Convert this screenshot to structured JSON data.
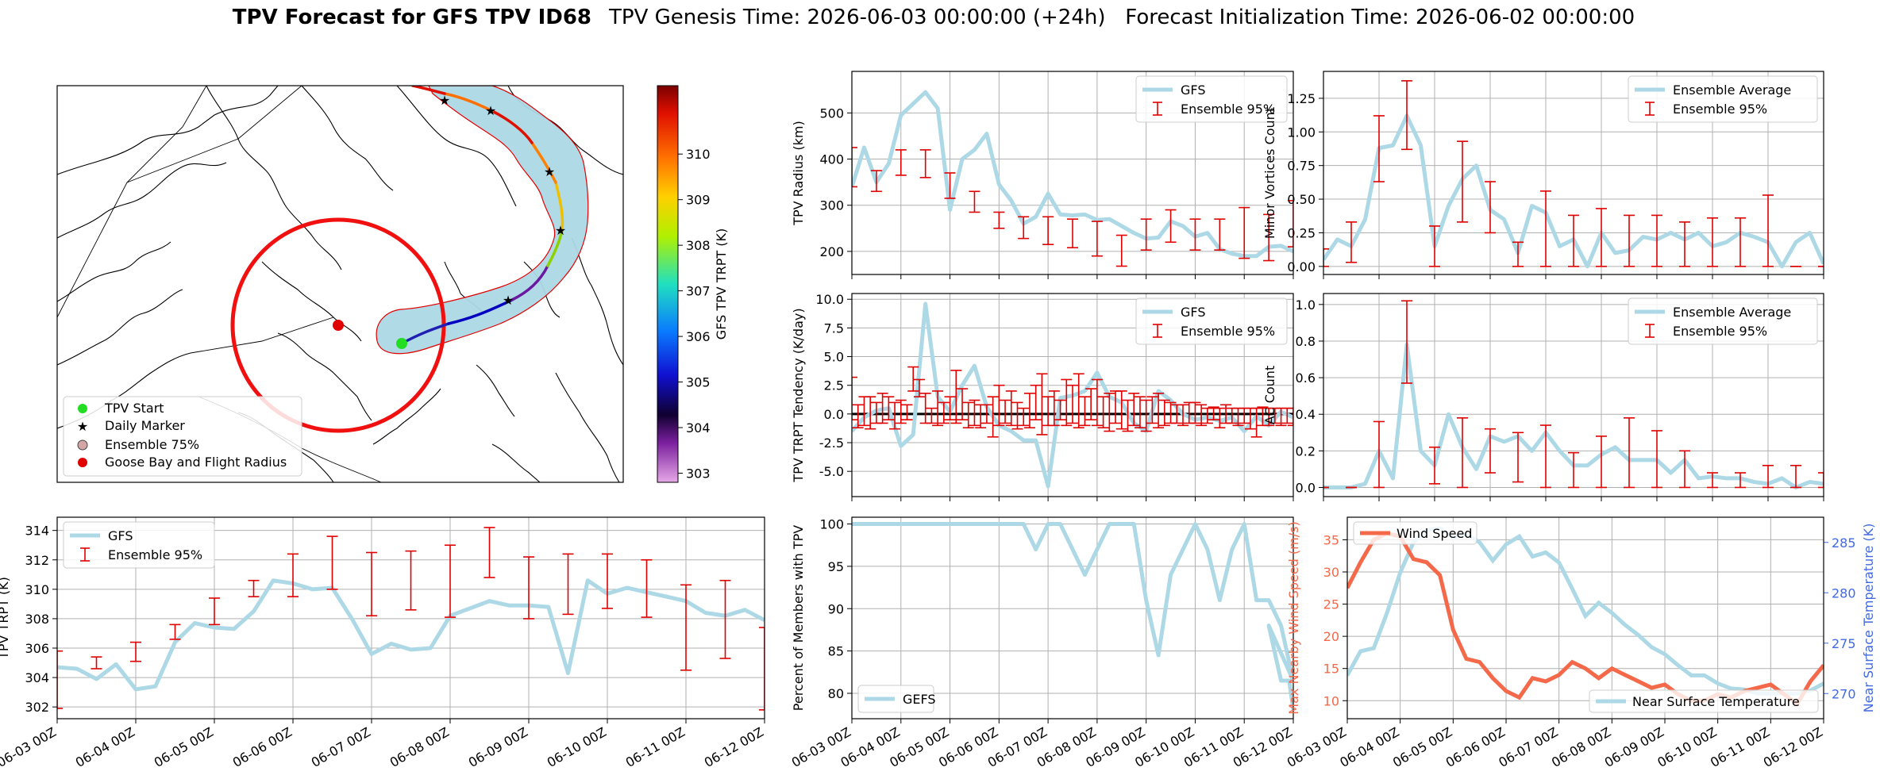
{
  "figure": {
    "title_bold": "TPV Forecast for GFS TPV ID68",
    "title_rest": "TPV Genesis Time: 2026-06-03 00:00:00 (+24h)   Forecast Initialization Time: 2026-06-02 00:00:00"
  },
  "colors": {
    "mean_line": "#add8e6",
    "errorbar": "#e00000",
    "wind": "#f4694a",
    "temp_axis": "#4169e1",
    "cone_fill": "#add8e6",
    "cone_edge": "#e00000",
    "radius_circle": "#f01010"
  },
  "time_ticks": [
    "06-03 00Z",
    "06-04 00Z",
    "06-05 00Z",
    "06-06 00Z",
    "06-07 00Z",
    "06-08 00Z",
    "06-09 00Z",
    "06-10 00Z",
    "06-11 00Z",
    "06-12 00Z"
  ],
  "chart_data": [
    {
      "id": "map",
      "type": "scatter",
      "legend": [
        "TPV Start",
        "Daily Marker",
        "Ensemble 75%",
        "Goose Bay and Flight Radius"
      ],
      "colorbar": {
        "label": "GFS TPV TRPT (K)",
        "ticks": [
          303,
          304,
          305,
          306,
          307,
          308,
          309,
          310
        ],
        "range": [
          302.8,
          311.5
        ]
      }
    },
    {
      "id": "radius",
      "type": "line",
      "ylabel": "TPV Radius (km)",
      "ylim": [
        150,
        590
      ],
      "yticks": [
        200,
        300,
        400,
        500
      ],
      "legend": [
        "GFS",
        "Ensemble 95%"
      ],
      "x_hours": [
        0,
        6,
        12,
        18,
        24,
        30,
        36,
        42,
        48,
        54,
        60,
        66,
        72,
        78,
        84,
        90,
        96,
        102,
        108,
        114,
        120,
        126,
        132,
        138,
        144,
        150,
        156,
        162,
        168,
        174,
        180,
        186,
        192,
        198,
        204,
        210,
        216
      ],
      "values": [
        340,
        425,
        350,
        390,
        495,
        520,
        545,
        510,
        290,
        400,
        420,
        455,
        345,
        310,
        260,
        275,
        325,
        280,
        278,
        280,
        268,
        270,
        255,
        240,
        228,
        230,
        265,
        255,
        232,
        240,
        205,
        195,
        190,
        190,
        210,
        212,
        200
      ],
      "err_x_hours": [
        0,
        12,
        24,
        36,
        48,
        60,
        72,
        84,
        96,
        108,
        120,
        132,
        144,
        156,
        168,
        180,
        192,
        204,
        216
      ],
      "err_low": [
        340,
        330,
        365,
        360,
        315,
        285,
        250,
        228,
        215,
        208,
        190,
        168,
        203,
        220,
        203,
        203,
        185,
        180,
        210
      ],
      "err_high": [
        425,
        375,
        420,
        420,
        370,
        330,
        285,
        275,
        275,
        270,
        265,
        235,
        270,
        290,
        270,
        270,
        295,
        280,
        310
      ]
    },
    {
      "id": "minor",
      "type": "line",
      "ylabel": "Minor Vortices Count",
      "ylim": [
        -0.06,
        1.45
      ],
      "yticks": [
        0.0,
        0.25,
        0.5,
        0.75,
        1.0,
        1.25
      ],
      "legend": [
        "Ensemble Average",
        "Ensemble 95%"
      ],
      "x_hours": [
        0,
        6,
        12,
        18,
        24,
        30,
        36,
        42,
        48,
        54,
        60,
        66,
        72,
        78,
        84,
        90,
        96,
        102,
        108,
        114,
        120,
        126,
        132,
        138,
        144,
        150,
        156,
        162,
        168,
        174,
        180,
        186,
        192,
        198,
        204,
        210,
        216
      ],
      "values": [
        0.05,
        0.2,
        0.15,
        0.35,
        0.88,
        0.9,
        1.12,
        0.9,
        0.15,
        0.45,
        0.65,
        0.75,
        0.42,
        0.35,
        0.1,
        0.45,
        0.4,
        0.15,
        0.2,
        0.0,
        0.25,
        0.1,
        0.12,
        0.22,
        0.2,
        0.25,
        0.2,
        0.25,
        0.15,
        0.18,
        0.25,
        0.22,
        0.18,
        0.0,
        0.18,
        0.25,
        0.02
      ],
      "err_x_hours": [
        0,
        12,
        24,
        36,
        48,
        60,
        72,
        84,
        96,
        108,
        120,
        132,
        144,
        156,
        168,
        180,
        192,
        204,
        216
      ],
      "err_low": [
        0.0,
        0.03,
        0.63,
        0.87,
        0.0,
        0.33,
        0.25,
        0.0,
        0.0,
        0.0,
        0.0,
        0.0,
        0.0,
        0.0,
        0.0,
        0.0,
        0.0,
        0.0,
        0.0
      ],
      "err_high": [
        0.13,
        0.33,
        1.12,
        1.38,
        0.3,
        0.93,
        0.63,
        0.18,
        0.56,
        0.38,
        0.43,
        0.38,
        0.38,
        0.33,
        0.36,
        0.36,
        0.53,
        0.0,
        0.0
      ]
    },
    {
      "id": "tendency",
      "type": "line",
      "ylabel": "TPV TRPT Tendency (K/day)",
      "ylim": [
        -7.2,
        10.5
      ],
      "yticks": [
        -5.0,
        -2.5,
        0.0,
        2.5,
        5.0,
        7.5,
        10.0
      ],
      "legend": [
        "GFS",
        "Ensemble 95%"
      ],
      "x_hours": [
        0,
        6,
        12,
        18,
        24,
        30,
        36,
        42,
        48,
        54,
        60,
        66,
        72,
        78,
        84,
        90,
        96,
        102,
        108,
        114,
        120,
        126,
        132,
        138,
        144,
        150,
        156,
        162,
        168,
        174,
        180,
        186,
        192,
        198,
        204,
        210,
        216
      ],
      "values": [
        -1.5,
        -0.3,
        0.3,
        0.5,
        -2.8,
        -1.8,
        9.6,
        1.5,
        0.2,
        2.5,
        4.2,
        0.6,
        -1.0,
        -1.5,
        -2.3,
        -2.3,
        -6.3,
        1.4,
        1.6,
        2.0,
        3.6,
        1.5,
        1.0,
        -0.8,
        -1.5,
        2.0,
        1.2,
        0.0,
        -0.5,
        -0.3,
        -0.6,
        -0.3,
        -1.5,
        -0.2,
        -1.0,
        0.2,
        -0.3
      ],
      "err_x_hours": [
        0,
        3,
        6,
        9,
        12,
        15,
        18,
        21,
        24,
        27,
        30,
        33,
        36,
        39,
        42,
        45,
        48,
        51,
        54,
        57,
        60,
        63,
        66,
        69,
        72,
        75,
        78,
        81,
        84,
        87,
        90,
        93,
        96,
        99,
        102,
        105,
        108,
        111,
        114,
        117,
        120,
        123,
        126,
        129,
        132,
        135,
        138,
        141,
        144,
        147,
        150,
        153,
        156,
        159,
        162,
        165,
        168,
        171,
        174,
        177,
        180,
        183,
        186,
        189,
        192,
        195,
        198,
        201,
        204,
        207,
        210,
        213,
        216
      ],
      "err_low": [
        -0.5,
        -1.2,
        -1.0,
        -1.3,
        -0.8,
        -0.8,
        -0.5,
        -1.3,
        -0.8,
        -0.5,
        2.0,
        1.5,
        -0.8,
        -0.8,
        -1.0,
        -0.8,
        -0.5,
        -0.8,
        -0.5,
        -1.2,
        -1.0,
        -1.2,
        -0.8,
        -2.0,
        -1.0,
        -0.8,
        -1.0,
        -1.3,
        -1.0,
        -1.2,
        -0.5,
        -1.8,
        -1.0,
        -1.0,
        -0.5,
        -1.0,
        -0.8,
        -1.2,
        -1.0,
        -0.5,
        -1.0,
        -1.2,
        -1.5,
        -0.8,
        -1.3,
        -1.5,
        -1.0,
        -1.2,
        -1.5,
        -0.8,
        -1.2,
        -1.0,
        -0.8,
        -0.8,
        -1.0,
        -0.8,
        -0.8,
        -1.0,
        -0.8,
        -0.5,
        -1.2,
        -0.8,
        -0.8,
        -1.0,
        -0.8,
        -1.3,
        -2.0,
        -1.0,
        -1.0,
        -0.8,
        -1.0,
        -0.8,
        -1.0
      ],
      "err_high": [
        3.2,
        0.8,
        1.5,
        1.5,
        1.0,
        1.8,
        1.5,
        1.0,
        1.2,
        0.8,
        4.1,
        3.0,
        1.8,
        0.5,
        2.0,
        1.0,
        1.5,
        3.8,
        2.2,
        1.0,
        1.2,
        0.8,
        0.8,
        1.5,
        2.5,
        1.2,
        2.0,
        1.0,
        0.5,
        1.8,
        2.5,
        3.5,
        1.5,
        2.0,
        1.2,
        3.0,
        2.5,
        3.5,
        1.5,
        2.2,
        3.0,
        1.5,
        1.8,
        2.0,
        2.0,
        1.2,
        1.8,
        1.5,
        1.2,
        1.5,
        1.8,
        1.2,
        1.0,
        0.8,
        0.8,
        1.0,
        1.0,
        0.8,
        0.5,
        0.6,
        0.5,
        0.8,
        0.5,
        0.5,
        0.5,
        0.5,
        0.5,
        0.6,
        0.5,
        0.5,
        0.5,
        0.5,
        0.5
      ],
      "zero_line": true
    },
    {
      "id": "ac",
      "type": "line",
      "ylabel": "AC Count",
      "ylim": [
        -0.05,
        1.06
      ],
      "yticks": [
        0.0,
        0.2,
        0.4,
        0.6,
        0.8,
        1.0
      ],
      "legend": [
        "Ensemble Average",
        "Ensemble 95%"
      ],
      "x_hours": [
        0,
        6,
        12,
        18,
        24,
        30,
        36,
        42,
        48,
        54,
        60,
        66,
        72,
        78,
        84,
        90,
        96,
        102,
        108,
        114,
        120,
        126,
        132,
        138,
        144,
        150,
        156,
        162,
        168,
        174,
        180,
        186,
        192,
        198,
        204,
        210,
        216
      ],
      "values": [
        0.0,
        0.0,
        0.0,
        0.02,
        0.2,
        0.05,
        0.78,
        0.2,
        0.12,
        0.4,
        0.22,
        0.1,
        0.28,
        0.25,
        0.28,
        0.2,
        0.3,
        0.2,
        0.12,
        0.12,
        0.18,
        0.22,
        0.15,
        0.15,
        0.15,
        0.08,
        0.15,
        0.05,
        0.06,
        0.05,
        0.05,
        0.03,
        0.02,
        0.05,
        0.0,
        0.03,
        0.02
      ],
      "err_x_hours": [
        0,
        12,
        24,
        36,
        48,
        60,
        72,
        84,
        96,
        108,
        120,
        132,
        144,
        156,
        168,
        180,
        192,
        204,
        216
      ],
      "err_low": [
        0.0,
        0.0,
        0.0,
        0.57,
        0.02,
        0.0,
        0.08,
        0.03,
        0.0,
        0.0,
        0.0,
        0.0,
        0.0,
        0.0,
        0.0,
        0.0,
        0.0,
        0.0,
        0.0
      ],
      "err_high": [
        0.0,
        0.0,
        0.36,
        1.02,
        0.22,
        0.38,
        0.32,
        0.3,
        0.34,
        0.19,
        0.28,
        0.38,
        0.31,
        0.2,
        0.08,
        0.08,
        0.12,
        0.12,
        0.08
      ]
    },
    {
      "id": "trpt",
      "type": "line",
      "ylabel": "TPV TRPT (K)",
      "ylim": [
        301.2,
        314.9
      ],
      "yticks": [
        302,
        304,
        306,
        308,
        310,
        312,
        314
      ],
      "legend": [
        "GFS",
        "Ensemble 95%"
      ],
      "x_hours": [
        0,
        6,
        12,
        18,
        24,
        30,
        36,
        42,
        48,
        54,
        60,
        66,
        72,
        78,
        84,
        90,
        96,
        102,
        108,
        114,
        120,
        126,
        132,
        138,
        144,
        150,
        156,
        162,
        168,
        174,
        180,
        186,
        192,
        198,
        204,
        210,
        216
      ],
      "values": [
        304.7,
        304.6,
        303.9,
        304.9,
        303.2,
        303.4,
        306.4,
        307.7,
        307.4,
        307.3,
        308.5,
        310.6,
        310.4,
        310.0,
        310.1,
        308.0,
        305.6,
        306.3,
        305.9,
        306.0,
        308.2,
        308.7,
        309.2,
        308.9,
        308.9,
        308.8,
        304.3,
        310.6,
        309.7,
        310.1,
        309.8,
        309.5,
        309.2,
        308.4,
        308.2,
        308.6,
        307.9
      ],
      "err_x_hours": [
        0,
        12,
        24,
        36,
        48,
        60,
        72,
        84,
        96,
        108,
        120,
        132,
        144,
        156,
        168,
        180,
        192,
        204,
        216
      ],
      "err_low": [
        301.9,
        304.6,
        305.1,
        306.6,
        307.6,
        309.5,
        309.5,
        310.0,
        308.2,
        308.6,
        308.1,
        310.8,
        308.0,
        308.3,
        308.7,
        308.1,
        304.5,
        305.3,
        301.8
      ],
      "err_high": [
        305.8,
        305.4,
        306.4,
        307.6,
        309.4,
        310.6,
        312.4,
        313.6,
        312.5,
        312.6,
        313.0,
        314.2,
        312.2,
        312.4,
        312.4,
        312.0,
        310.3,
        310.6,
        307.4
      ]
    },
    {
      "id": "percent",
      "type": "line",
      "ylabel": "Percent of Members with TPV",
      "ylim": [
        77,
        100.8
      ],
      "yticks": [
        80,
        85,
        90,
        95,
        100
      ],
      "legend": [
        "GEFS"
      ],
      "x_hours": [
        0,
        6,
        12,
        18,
        24,
        30,
        36,
        42,
        48,
        54,
        60,
        66,
        72,
        78,
        84,
        90,
        96,
        102,
        108,
        114,
        120,
        126,
        132,
        138,
        144,
        150,
        156,
        162,
        168,
        174,
        180,
        186,
        192,
        198,
        204,
        210,
        216
      ],
      "values": [
        100,
        100,
        100,
        100,
        100,
        100,
        100,
        100,
        100,
        100,
        100,
        100,
        100,
        100,
        100,
        97,
        100,
        100,
        97,
        94,
        97,
        100,
        100,
        100,
        91,
        84.5,
        94,
        97,
        100,
        97,
        91,
        97,
        100,
        91,
        91,
        88,
        81.5
      ],
      "tail_x_hours": [
        204,
        210,
        214,
        216
      ],
      "tail_values": [
        88,
        81.5,
        81.5,
        78
      ]
    },
    {
      "id": "wind_temp",
      "type": "line",
      "ylabel": "Max Nearby Wind Speed (m/s)",
      "y2label": "Near Surface Temperature (K)",
      "ylim": [
        7.2,
        38.5
      ],
      "yticks": [
        10,
        15,
        20,
        25,
        30,
        35
      ],
      "y2lim": [
        267.5,
        287.5
      ],
      "y2ticks": [
        270,
        275,
        280,
        285
      ],
      "legend": [
        "Wind Speed"
      ],
      "legend2": [
        "Near Surface Temperature"
      ],
      "x_hours": [
        0,
        6,
        12,
        18,
        24,
        30,
        36,
        42,
        48,
        54,
        60,
        66,
        72,
        78,
        84,
        90,
        96,
        102,
        108,
        114,
        120,
        126,
        132,
        138,
        144,
        150,
        156,
        162,
        168,
        174,
        180,
        186,
        192,
        198,
        204,
        210,
        216
      ],
      "wind_values": [
        27.5,
        31.5,
        35.0,
        36.0,
        35.5,
        32.0,
        31.5,
        29.5,
        21.0,
        16.5,
        16.0,
        13.5,
        11.5,
        10.5,
        13.5,
        13.0,
        14.0,
        16.0,
        15.0,
        13.5,
        15.0,
        14.0,
        13.0,
        12.0,
        12.5,
        11.0,
        10.0,
        10.0,
        11.0,
        10.5,
        11.5,
        12.0,
        12.5,
        11.0,
        9.5,
        13.0,
        15.5
      ],
      "temp_values": [
        271.8,
        274.2,
        274.5,
        278.0,
        282.0,
        285.0,
        286.2,
        286.4,
        285.5,
        285.8,
        285.0,
        283.2,
        284.8,
        285.6,
        283.6,
        284.0,
        283.0,
        280.4,
        277.7,
        279.0,
        278.0,
        276.8,
        275.8,
        274.6,
        273.9,
        272.8,
        271.8,
        271.8,
        271.0,
        270.5,
        270.4,
        270.0,
        270.0,
        270.0,
        270.0,
        270.3,
        271.0
      ]
    }
  ]
}
